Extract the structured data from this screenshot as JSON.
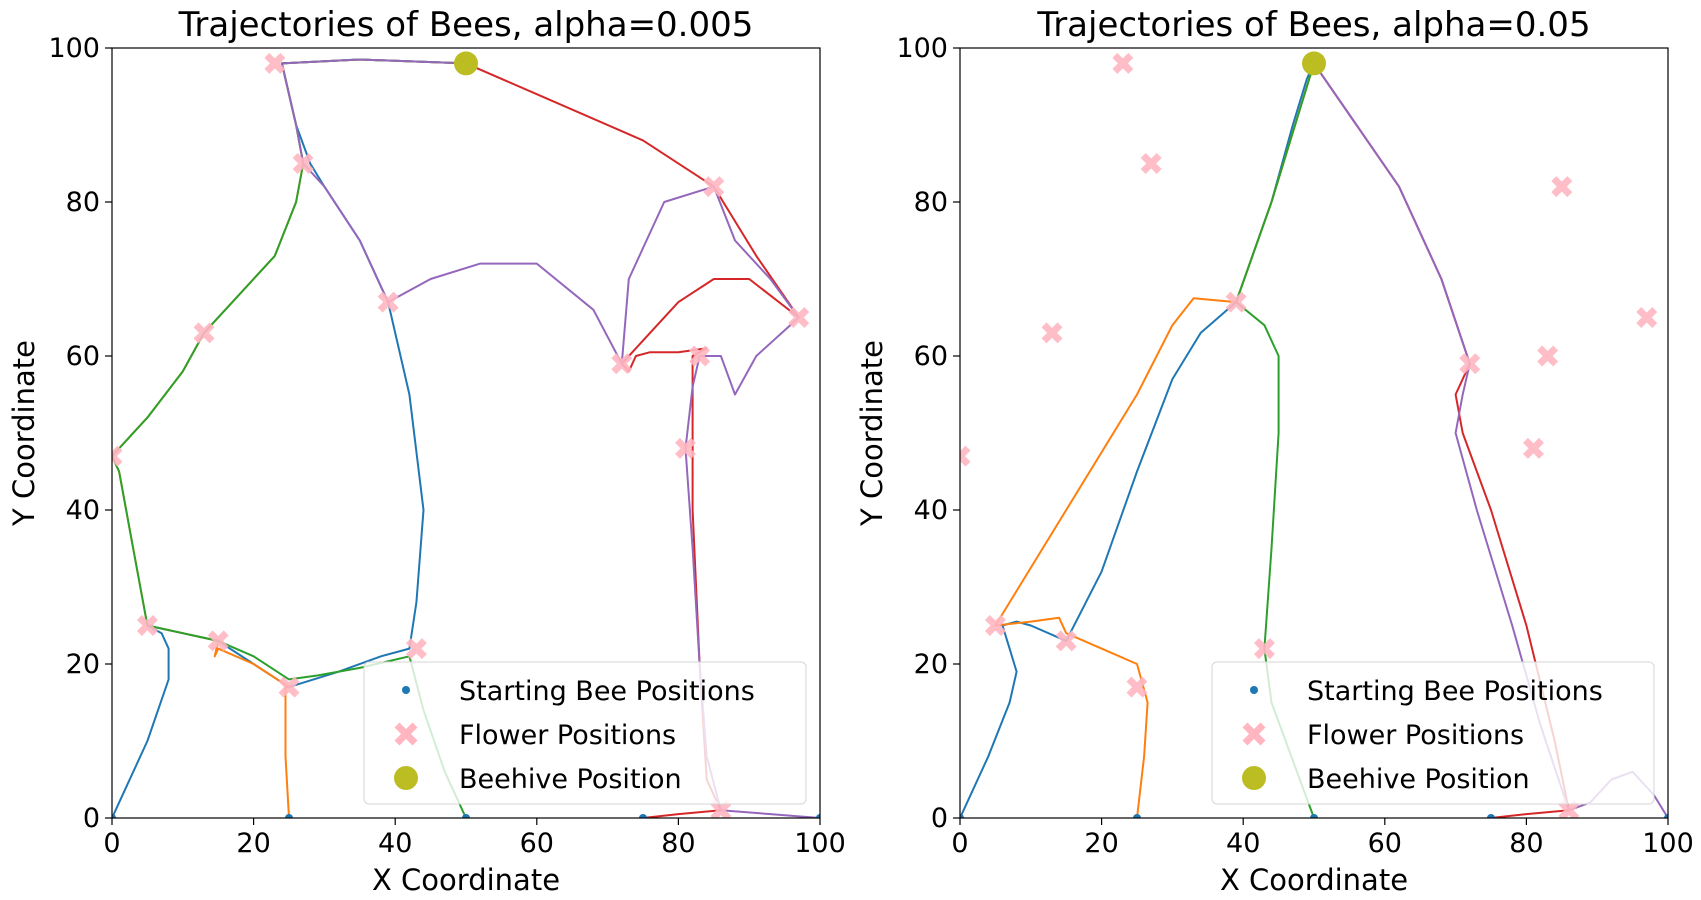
{
  "colors": {
    "bee_start": "#1f77b4",
    "flower": "#ffb6c1",
    "beehive": "#bcbd22",
    "series": [
      "#1f77b4",
      "#ff7f0e",
      "#2ca02c",
      "#d62728",
      "#9467bd"
    ]
  },
  "legend": {
    "start": "Starting Bee Positions",
    "flower": "Flower Positions",
    "hive": "Beehive Position",
    "placement": "lower right"
  },
  "chart_data": [
    {
      "type": "line",
      "title": "Trajectories of Bees, alpha=0.005",
      "xlabel": "X Coordinate",
      "ylabel": "Y Coordinate",
      "xlim": [
        0,
        100
      ],
      "ylim": [
        0,
        100
      ],
      "xticks": [
        "0",
        "20",
        "40",
        "60",
        "80",
        "100"
      ],
      "yticks": [
        "0",
        "20",
        "40",
        "60",
        "80",
        "100"
      ],
      "grid": false,
      "bee_starts": [
        [
          0,
          0
        ],
        [
          25,
          0
        ],
        [
          50,
          0
        ],
        [
          75,
          0
        ],
        [
          100,
          0
        ]
      ],
      "flowers": [
        [
          23,
          98
        ],
        [
          27,
          85
        ],
        [
          39,
          67
        ],
        [
          13,
          63
        ],
        [
          0,
          47
        ],
        [
          5,
          25
        ],
        [
          15,
          23
        ],
        [
          25,
          17
        ],
        [
          43,
          22
        ],
        [
          72,
          59
        ],
        [
          83,
          60
        ],
        [
          81,
          48
        ],
        [
          85,
          82
        ],
        [
          97,
          65
        ],
        [
          86,
          1
        ]
      ],
      "beehive": [
        50,
        98
      ],
      "series": [
        {
          "values": [
            [
              0,
              0
            ],
            [
              5,
              10
            ],
            [
              8,
              18
            ],
            [
              8,
              22
            ],
            [
              7,
              24
            ],
            [
              5,
              25
            ],
            [
              10,
              24
            ],
            [
              15,
              23
            ],
            [
              20,
              20
            ],
            [
              25,
              17
            ],
            [
              32,
              19
            ],
            [
              38,
              21
            ],
            [
              42,
              22
            ],
            [
              43,
              28
            ],
            [
              44,
              40
            ],
            [
              42,
              55
            ],
            [
              39,
              67
            ],
            [
              35,
              75
            ],
            [
              30,
              82
            ],
            [
              28,
              85
            ],
            [
              26,
              90
            ],
            [
              24,
              98
            ],
            [
              35,
              98.5
            ],
            [
              50,
              98
            ]
          ]
        },
        {
          "values": [
            [
              25,
              0
            ],
            [
              24.5,
              8
            ],
            [
              24.5,
              17
            ],
            [
              25,
              17
            ],
            [
              20,
              20
            ],
            [
              15,
              22
            ],
            [
              14.5,
              21
            ],
            [
              15,
              23
            ],
            [
              10,
              24
            ],
            [
              5,
              25
            ],
            [
              3,
              35
            ],
            [
              1,
              45
            ],
            [
              0,
              47
            ],
            [
              5,
              52
            ],
            [
              10,
              58
            ],
            [
              13,
              63
            ],
            [
              18,
              68
            ],
            [
              23,
              73
            ],
            [
              26,
              80
            ],
            [
              27,
              85
            ],
            [
              26,
              90
            ],
            [
              24,
              98
            ],
            [
              35,
              98.5
            ],
            [
              50,
              98
            ]
          ]
        },
        {
          "values": [
            [
              50,
              0
            ],
            [
              47,
              6
            ],
            [
              44,
              14
            ],
            [
              42,
              21
            ],
            [
              35,
              19.5
            ],
            [
              29,
              18.5
            ],
            [
              25,
              18
            ],
            [
              20,
              21
            ],
            [
              15,
              23
            ],
            [
              10,
              24
            ],
            [
              5,
              25
            ],
            [
              3,
              35
            ],
            [
              1,
              45
            ],
            [
              0,
              47
            ],
            [
              5,
              52
            ],
            [
              10,
              58
            ],
            [
              13,
              63
            ],
            [
              18,
              68
            ],
            [
              23,
              73
            ],
            [
              26,
              80
            ],
            [
              27,
              85
            ],
            [
              26,
              90
            ],
            [
              24,
              98
            ],
            [
              35,
              98.5
            ],
            [
              50,
              98
            ]
          ]
        },
        {
          "values": [
            [
              75,
              0
            ],
            [
              80,
              0.5
            ],
            [
              86,
              1
            ],
            [
              84,
              5
            ],
            [
              83,
              20
            ],
            [
              82,
              40
            ],
            [
              82,
              52
            ],
            [
              82,
              60
            ],
            [
              84,
              61
            ],
            [
              80,
              60.5
            ],
            [
              76,
              60.5
            ],
            [
              74,
              60
            ],
            [
              73,
              58
            ],
            [
              72,
              59
            ],
            [
              75,
              62
            ],
            [
              80,
              67
            ],
            [
              85,
              70
            ],
            [
              90,
              70
            ],
            [
              97,
              65
            ],
            [
              91,
              73
            ],
            [
              85,
              82
            ],
            [
              75,
              88
            ],
            [
              60,
              94
            ],
            [
              50,
              98
            ]
          ]
        },
        {
          "values": [
            [
              100,
              0
            ],
            [
              93,
              0.5
            ],
            [
              86,
              1
            ],
            [
              84,
              8
            ],
            [
              83,
              20
            ],
            [
              82,
              35
            ],
            [
              81,
              48
            ],
            [
              82,
              56
            ],
            [
              83,
              60
            ],
            [
              86,
              60
            ],
            [
              88,
              55
            ],
            [
              91,
              60
            ],
            [
              97,
              65
            ],
            [
              93,
              70
            ],
            [
              88,
              75
            ],
            [
              85,
              82
            ],
            [
              78,
              80
            ],
            [
              73,
              70
            ],
            [
              72,
              59
            ],
            [
              68,
              66
            ],
            [
              60,
              72
            ],
            [
              52,
              72
            ],
            [
              45,
              70
            ],
            [
              39,
              67
            ],
            [
              35,
              75
            ],
            [
              30,
              82
            ],
            [
              27,
              85
            ],
            [
              26,
              90
            ],
            [
              24,
              98
            ],
            [
              35,
              98.5
            ],
            [
              50,
              98
            ]
          ]
        }
      ]
    },
    {
      "type": "line",
      "title": "Trajectories of Bees, alpha=0.05",
      "xlabel": "X Coordinate",
      "ylabel": "Y Coordinate",
      "xlim": [
        0,
        100
      ],
      "ylim": [
        0,
        100
      ],
      "xticks": [
        "0",
        "20",
        "40",
        "60",
        "80",
        "100"
      ],
      "yticks": [
        "0",
        "20",
        "40",
        "60",
        "80",
        "100"
      ],
      "grid": false,
      "bee_starts": [
        [
          0,
          0
        ],
        [
          25,
          0
        ],
        [
          50,
          0
        ],
        [
          75,
          0
        ],
        [
          100,
          0
        ]
      ],
      "flowers": [
        [
          23,
          98
        ],
        [
          27,
          85
        ],
        [
          39,
          67
        ],
        [
          13,
          63
        ],
        [
          0,
          47
        ],
        [
          5,
          25
        ],
        [
          15,
          23
        ],
        [
          25,
          17
        ],
        [
          43,
          22
        ],
        [
          72,
          59
        ],
        [
          83,
          60
        ],
        [
          81,
          48
        ],
        [
          85,
          82
        ],
        [
          97,
          65
        ],
        [
          86,
          1
        ]
      ],
      "beehive": [
        50,
        98
      ],
      "series": [
        {
          "values": [
            [
              0,
              0
            ],
            [
              4,
              8
            ],
            [
              7,
              15
            ],
            [
              8,
              19
            ],
            [
              7,
              22
            ],
            [
              6,
              25
            ],
            [
              8,
              25.5
            ],
            [
              10,
              25
            ],
            [
              15,
              23
            ],
            [
              20,
              32
            ],
            [
              25,
              45
            ],
            [
              30,
              57
            ],
            [
              34,
              63
            ],
            [
              39,
              67
            ],
            [
              44,
              80
            ],
            [
              47,
              90
            ],
            [
              49,
              96
            ],
            [
              50,
              98
            ]
          ]
        },
        {
          "values": [
            [
              25,
              0
            ],
            [
              26,
              8
            ],
            [
              26.5,
              15
            ],
            [
              25,
              20
            ],
            [
              20,
              22
            ],
            [
              15,
              24
            ],
            [
              14,
              26
            ],
            [
              10,
              25.5
            ],
            [
              5,
              25
            ],
            [
              15,
              40
            ],
            [
              25,
              55
            ],
            [
              30,
              64
            ],
            [
              33,
              67.5
            ],
            [
              39,
              67
            ],
            [
              44,
              80
            ],
            [
              48,
              92
            ],
            [
              50,
              98
            ]
          ]
        },
        {
          "values": [
            [
              50,
              0
            ],
            [
              48,
              5
            ],
            [
              44,
              15
            ],
            [
              43,
              22
            ],
            [
              44,
              35
            ],
            [
              45,
              50
            ],
            [
              45,
              60
            ],
            [
              43,
              64
            ],
            [
              39,
              67
            ],
            [
              44,
              80
            ],
            [
              48,
              92
            ],
            [
              50,
              98
            ]
          ]
        },
        {
          "values": [
            [
              75,
              0
            ],
            [
              80,
              0.5
            ],
            [
              86,
              1
            ],
            [
              84,
              10
            ],
            [
              80,
              25
            ],
            [
              75,
              40
            ],
            [
              71,
              50
            ],
            [
              70,
              55
            ],
            [
              72,
              59
            ],
            [
              68,
              70
            ],
            [
              62,
              82
            ],
            [
              56,
              90
            ],
            [
              50,
              98
            ]
          ]
        },
        {
          "values": [
            [
              100,
              0
            ],
            [
              98,
              3
            ],
            [
              95,
              6
            ],
            [
              92,
              5
            ],
            [
              89,
              2
            ],
            [
              86,
              1
            ],
            [
              82,
              12
            ],
            [
              78,
              25
            ],
            [
              73,
              40
            ],
            [
              70,
              50
            ],
            [
              71,
              55
            ],
            [
              72,
              59
            ],
            [
              68,
              70
            ],
            [
              62,
              82
            ],
            [
              56,
              90
            ],
            [
              50,
              98
            ]
          ]
        }
      ]
    }
  ]
}
